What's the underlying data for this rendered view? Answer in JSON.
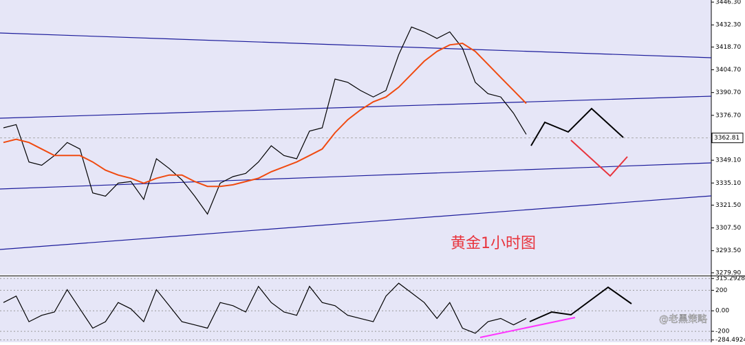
{
  "chart_data": [
    {
      "type": "line",
      "categories": [
        null,
        null,
        null,
        null,
        null,
        null,
        null,
        null,
        null,
        null,
        null,
        null,
        null,
        null,
        null,
        null,
        null,
        null,
        null,
        null,
        null,
        null,
        null,
        null,
        null,
        null,
        null,
        null,
        null,
        null,
        null,
        null,
        null,
        null,
        null,
        null,
        null,
        null,
        null,
        null,
        null,
        null
      ],
      "series": [
        {
          "color": "#000000",
          "values": [
            3369,
            3371,
            3348,
            3346,
            3352,
            3360,
            3356,
            3329,
            3327,
            3335,
            3336,
            3325,
            3350,
            3344,
            3337,
            3327,
            3316,
            3335,
            3339,
            3341,
            3348,
            3358,
            3352,
            3350,
            3367,
            3369,
            3399,
            3397,
            3392,
            3388,
            3392,
            3414,
            3431,
            3428,
            3424,
            3428,
            3418,
            3397,
            3390,
            3388,
            3378,
            3365
          ]
        },
        {
          "color": "#f04a10",
          "values": [
            3360,
            3362,
            3360,
            3356,
            3352,
            3352,
            3352,
            3348,
            3343,
            3340,
            3338,
            3335,
            3338,
            3340,
            3340,
            3336,
            3333,
            3333,
            3334,
            3336,
            3338,
            3342,
            3345,
            3348,
            3352,
            3356,
            3366,
            3374,
            3380,
            3385,
            3388,
            3394,
            3402,
            3410,
            3416,
            3420,
            3421,
            3416,
            3408,
            3400,
            3392,
            3384
          ]
        }
      ],
      "ylim": [
        3278.6,
        3447.6
      ],
      "yticks": [
        {
          "value": 3446.3,
          "label": "3446.30"
        },
        {
          "value": 3432.3,
          "label": "3432.30"
        },
        {
          "value": 3418.7,
          "label": "3418.70"
        },
        {
          "value": 3404.7,
          "label": "3404.70"
        },
        {
          "value": 3390.7,
          "label": "3390.70"
        },
        {
          "value": 3376.7,
          "label": "3376.70"
        },
        {
          "value": 3349.1,
          "label": "3349.10"
        },
        {
          "value": 3335.1,
          "label": "3335.10"
        },
        {
          "value": 3321.5,
          "label": "3321.50"
        },
        {
          "value": 3307.5,
          "label": "3307.50"
        },
        {
          "value": 3293.5,
          "label": "3293.50"
        },
        {
          "value": 3279.9,
          "label": "3279.90"
        }
      ],
      "last_price": 3362.81,
      "annotation": "黄金1小时图"
    },
    {
      "type": "line",
      "series": [
        {
          "color": "#000000",
          "values": [
            81,
            144,
            -106,
            -44,
            -12,
            206,
            19,
            -169,
            -106,
            81,
            19,
            -106,
            206,
            50,
            -106,
            -137,
            -169,
            81,
            50,
            -12,
            238,
            81,
            -12,
            -44,
            238,
            81,
            50,
            -44,
            -75,
            -106,
            144,
            269,
            175,
            81,
            -75,
            81,
            -169,
            -219,
            -106,
            -75,
            -137,
            -75
          ]
        }
      ],
      "ylim": [
        -300,
        330
      ],
      "yticks": [
        315.2928,
        200,
        {
          "value": 0,
          "label": "0.00"
        },
        -200,
        -284.4924
      ],
      "watermark": "@老黑策略"
    }
  ]
}
